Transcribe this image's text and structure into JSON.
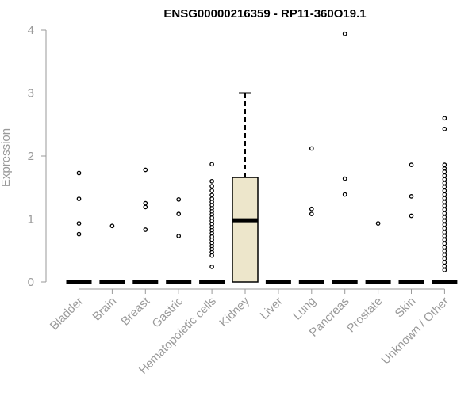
{
  "chart_data": {
    "type": "box",
    "title": "ENSG00000216359 - RP11-360O19.1",
    "xlabel": "",
    "ylabel": "Expression",
    "ylim": [
      0,
      4
    ],
    "yticks": [
      0,
      1,
      2,
      3,
      4
    ],
    "grid": false,
    "legend": "none",
    "colors": {
      "box_fill": "#EDE6CB",
      "outline": "#000000",
      "axis": "#9A9A9A",
      "title": "#000000"
    },
    "categories": [
      "Bladder",
      "Brain",
      "Breast",
      "Gastric",
      "Hematopoietic cells",
      "Kidney",
      "Liver",
      "Lung",
      "Pancreas",
      "Prostate",
      "Skin",
      "Unknown / Other"
    ],
    "boxes": [
      {
        "category": "Bladder",
        "q1": 0,
        "median": 0,
        "q3": 0,
        "whisker_low": 0,
        "whisker_high": 0,
        "outliers": [
          1.73,
          1.32,
          0.93,
          0.76
        ]
      },
      {
        "category": "Brain",
        "q1": 0,
        "median": 0,
        "q3": 0,
        "whisker_low": 0,
        "whisker_high": 0,
        "outliers": [
          0.89
        ]
      },
      {
        "category": "Breast",
        "q1": 0,
        "median": 0,
        "q3": 0,
        "whisker_low": 0,
        "whisker_high": 0,
        "outliers": [
          1.78,
          1.25,
          1.19,
          0.83
        ]
      },
      {
        "category": "Gastric",
        "q1": 0,
        "median": 0,
        "q3": 0,
        "whisker_low": 0,
        "whisker_high": 0,
        "outliers": [
          1.31,
          1.08,
          0.73
        ]
      },
      {
        "category": "Hematopoietic cells",
        "q1": 0,
        "median": 0,
        "q3": 0,
        "whisker_low": 0,
        "whisker_high": 0,
        "outliers": [
          1.87,
          1.6,
          1.52,
          1.45,
          1.38,
          1.32,
          1.27,
          1.22,
          1.17,
          1.12,
          1.07,
          1.02,
          0.97,
          0.92,
          0.87,
          0.82,
          0.77,
          0.72,
          0.67,
          0.62,
          0.57,
          0.52,
          0.47,
          0.42,
          0.24
        ]
      },
      {
        "category": "Kidney",
        "q1": 0,
        "median": 0.98,
        "q3": 1.66,
        "whisker_low": 0,
        "whisker_high": 3.0,
        "outliers": []
      },
      {
        "category": "Liver",
        "q1": 0,
        "median": 0,
        "q3": 0,
        "whisker_low": 0,
        "whisker_high": 0,
        "outliers": []
      },
      {
        "category": "Lung",
        "q1": 0,
        "median": 0,
        "q3": 0,
        "whisker_low": 0,
        "whisker_high": 0,
        "outliers": [
          2.12,
          1.16,
          1.08
        ]
      },
      {
        "category": "Pancreas",
        "q1": 0,
        "median": 0,
        "q3": 0,
        "whisker_low": 0,
        "whisker_high": 0,
        "outliers": [
          3.94,
          1.64,
          1.39
        ]
      },
      {
        "category": "Prostate",
        "q1": 0,
        "median": 0,
        "q3": 0,
        "whisker_low": 0,
        "whisker_high": 0,
        "outliers": [
          0.93
        ]
      },
      {
        "category": "Skin",
        "q1": 0,
        "median": 0,
        "q3": 0,
        "whisker_low": 0,
        "whisker_high": 0,
        "outliers": [
          1.86,
          1.36,
          1.05
        ]
      },
      {
        "category": "Unknown / Other",
        "q1": 0,
        "median": 0,
        "q3": 0,
        "whisker_low": 0,
        "whisker_high": 0,
        "outliers": [
          2.6,
          2.43,
          1.86,
          1.8,
          1.75,
          1.69,
          1.63,
          1.57,
          1.51,
          1.45,
          1.39,
          1.33,
          1.27,
          1.21,
          1.15,
          1.09,
          1.03,
          0.97,
          0.91,
          0.85,
          0.79,
          0.73,
          0.67,
          0.61,
          0.55,
          0.49,
          0.43,
          0.37,
          0.31,
          0.25,
          0.19
        ]
      }
    ]
  }
}
